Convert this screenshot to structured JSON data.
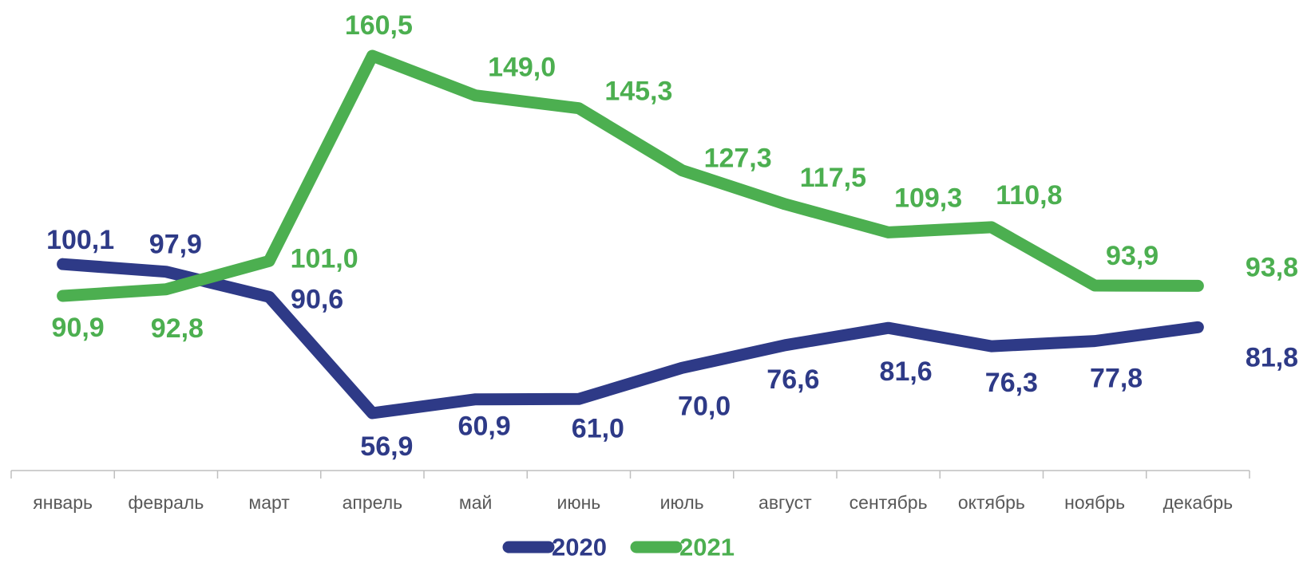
{
  "chart_data": {
    "type": "line",
    "categories": [
      "январь",
      "февраль",
      "март",
      "апрель",
      "май",
      "июнь",
      "июль",
      "август",
      "сентябрь",
      "октябрь",
      "ноябрь",
      "декабрь"
    ],
    "series": [
      {
        "name": "2020",
        "color": "#2e3a87",
        "values": [
          100.1,
          97.9,
          90.6,
          56.9,
          60.9,
          61.0,
          70.0,
          76.6,
          81.6,
          76.3,
          77.8,
          81.8
        ],
        "value_labels": [
          "100,1",
          "97,9",
          "90,6",
          "56,9",
          "60,9",
          "61,0",
          "70,0",
          "76,6",
          "81,6",
          "76,3",
          "77,8",
          "81,8"
        ]
      },
      {
        "name": "2021",
        "color": "#4caf50",
        "values": [
          90.9,
          92.8,
          101.0,
          160.5,
          149.0,
          145.3,
          127.3,
          117.5,
          109.3,
          110.8,
          93.9,
          93.8
        ],
        "value_labels": [
          "90,9",
          "92,8",
          "101,0",
          "160,5",
          "149,0",
          "145,3",
          "127,3",
          "117,5",
          "109,3",
          "110,8",
          "93,9",
          "93,8"
        ]
      }
    ],
    "legend": "bottom"
  }
}
